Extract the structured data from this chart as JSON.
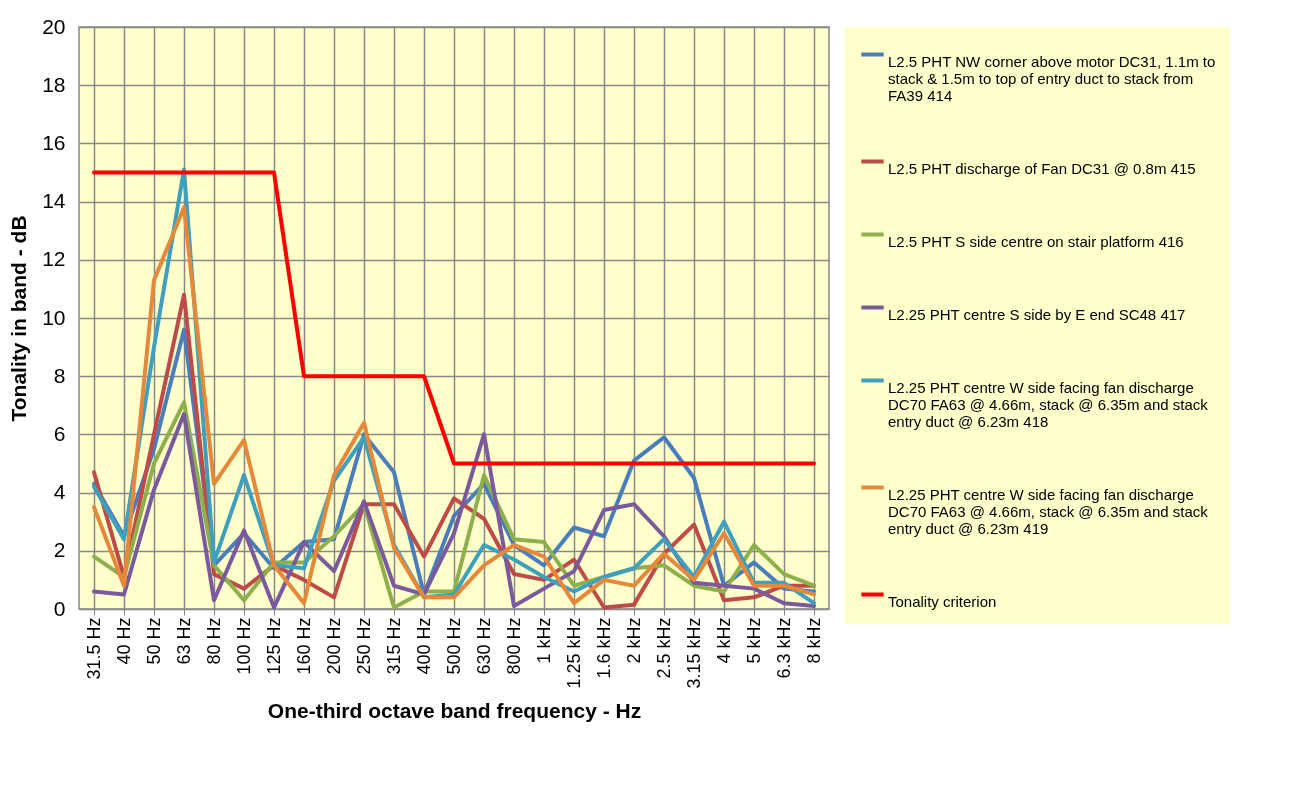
{
  "chart_data": {
    "type": "line",
    "xlabel": "One-third octave band frequency - Hz",
    "ylabel": "Tonality in band - dB",
    "categories": [
      "31.5 Hz",
      "40 Hz",
      "50 Hz",
      "63 Hz",
      "80 Hz",
      "100 Hz",
      "125 Hz",
      "160 Hz",
      "200 Hz",
      "250 Hz",
      "315 Hz",
      "400 Hz",
      "500 Hz",
      "630 Hz",
      "800 Hz",
      "1 kHz",
      "1.25 kHz",
      "1.6 kHz",
      "2 kHz",
      "2.5 kHz",
      "3.15 kHz",
      "4 kHz",
      "5 kHz",
      "6.3 kHz",
      "8 kHz"
    ],
    "series": [
      {
        "name": "L2.5 PHT NW corner above motor DC31, 1.1m to stack & 1.5m to top of entry duct to stack from FA39  414",
        "color": "#4a7ebb",
        "values": [
          4.3,
          2.5,
          5.5,
          9.6,
          1.5,
          2.6,
          1.4,
          2.3,
          2.4,
          6.0,
          4.7,
          0.5,
          3.2,
          4.3,
          2.2,
          1.5,
          2.8,
          2.5,
          5.1,
          5.9,
          4.5,
          0.8,
          1.6,
          0.7,
          0.6
        ]
      },
      {
        "name": "L2.5 PHT discharge of Fan DC31 @ 0.8m 415",
        "color": "#be4b48",
        "values": [
          4.7,
          1.1,
          6.0,
          10.8,
          1.2,
          0.7,
          1.5,
          1.0,
          0.4,
          3.6,
          3.6,
          1.8,
          3.8,
          3.1,
          1.2,
          1.0,
          1.7,
          0.05,
          0.15,
          1.9,
          2.9,
          0.3,
          0.4,
          0.8,
          0.8
        ]
      },
      {
        "name": "L2.5 PHT S side centre on stair platform 416",
        "color": "#8db04c",
        "values": [
          1.8,
          1.1,
          5.0,
          7.1,
          1.5,
          0.3,
          1.6,
          1.6,
          2.5,
          3.6,
          0.05,
          0.6,
          0.6,
          4.6,
          2.4,
          2.3,
          0.8,
          1.1,
          1.4,
          1.5,
          0.8,
          0.6,
          2.2,
          1.2,
          0.8
        ]
      },
      {
        "name": "L2.25 PHT centre S side by E end SC48 417",
        "color": "#7a5a9c",
        "values": [
          0.6,
          0.5,
          4.1,
          6.7,
          0.3,
          2.7,
          0.05,
          2.3,
          1.3,
          3.7,
          0.8,
          0.5,
          2.6,
          6.0,
          0.1,
          0.7,
          1.3,
          3.4,
          3.6,
          2.5,
          0.9,
          0.8,
          0.7,
          0.2,
          0.1
        ]
      },
      {
        "name": "L2.25 PHT centre W side facing fan discharge DC70 FA63 @ 4.66m, stack @ 6.35m and stack entry duct @ 6.23m 418",
        "color": "#3fa0bd",
        "values": [
          4.2,
          2.4,
          9.0,
          15.1,
          1.6,
          4.6,
          1.5,
          1.4,
          4.4,
          5.9,
          2.2,
          0.4,
          0.5,
          2.2,
          1.7,
          1.1,
          0.6,
          1.1,
          1.4,
          2.4,
          1.1,
          3.0,
          0.9,
          0.9,
          0.2
        ]
      },
      {
        "name": "L2.25 PHT centre W side facing fan discharge DC70 FA63 @ 4.66m, stack @ 6.35m and stack entry duct @ 6.23m 419",
        "color": "#e5883a",
        "values": [
          3.5,
          0.8,
          11.3,
          13.8,
          4.3,
          5.8,
          1.5,
          0.2,
          4.6,
          6.4,
          2.1,
          0.4,
          0.4,
          1.5,
          2.2,
          1.8,
          0.2,
          1.0,
          0.8,
          1.9,
          1.0,
          2.6,
          0.8,
          0.8,
          0.5
        ]
      },
      {
        "name": "Tonality criterion",
        "color": "#ff0000",
        "values": [
          15,
          15,
          15,
          15,
          15,
          15,
          15,
          8,
          8,
          8,
          8,
          8,
          5,
          5,
          5,
          5,
          5,
          5,
          5,
          5,
          5,
          5,
          5,
          5,
          5
        ]
      }
    ],
    "ylim": [
      0,
      20
    ],
    "yticks": [
      0,
      2,
      4,
      6,
      8,
      10,
      12,
      14,
      16,
      18,
      20
    ],
    "grid": true,
    "legend": "right",
    "marker": "none",
    "line_style": "solid"
  }
}
